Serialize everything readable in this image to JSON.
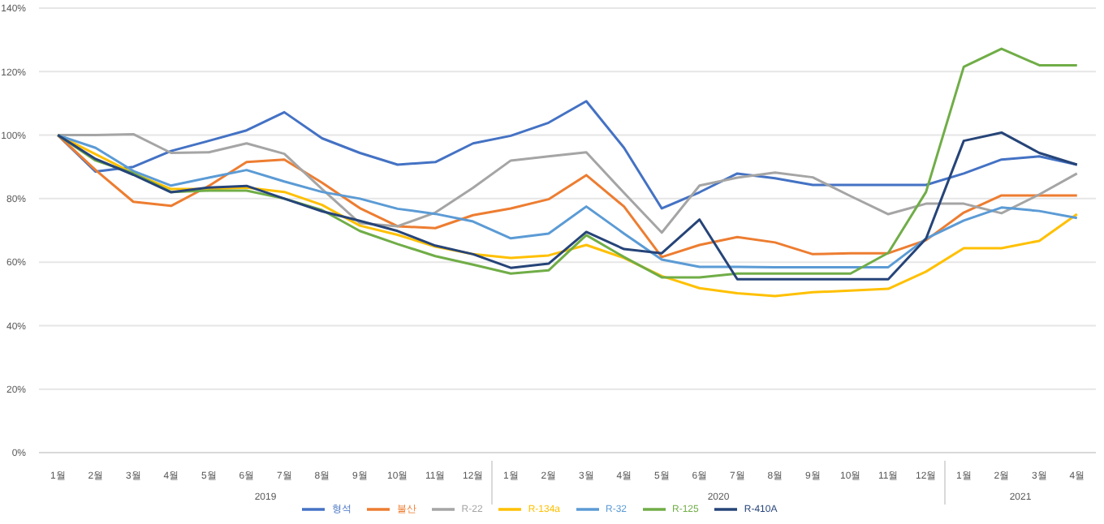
{
  "chart_data": {
    "type": "line",
    "categories": [
      "1월",
      "2월",
      "3월",
      "4월",
      "5월",
      "6월",
      "7월",
      "8월",
      "9월",
      "10월",
      "11월",
      "12월",
      "1월",
      "2월",
      "3월",
      "4월",
      "5월",
      "6월",
      "7월",
      "8월",
      "9월",
      "10월",
      "11월",
      "12월",
      "1월",
      "2월",
      "3월",
      "4월"
    ],
    "annotations": [
      "2019",
      "2020",
      "2021"
    ],
    "series": [
      {
        "name": "형석",
        "color": "#4472c4",
        "values": [
          100,
          88.5,
          90,
          95,
          98.2,
          101.5,
          107.2,
          99,
          94.4,
          90.7,
          91.5,
          97.4,
          99.8,
          103.9,
          110.7,
          96,
          76.9,
          82,
          87.9,
          86.4,
          84.3,
          84.3,
          84.3,
          84.3,
          87.9,
          92.3,
          93.3,
          90.7
        ]
      },
      {
        "name": "불산",
        "color": "#ed7d31",
        "values": [
          100,
          89,
          79,
          77.7,
          84,
          91.5,
          92.3,
          85,
          77,
          71.3,
          70.7,
          74.8,
          76.9,
          79.8,
          87.4,
          77.5,
          61.6,
          65.4,
          67.9,
          66.2,
          62.5,
          62.8,
          62.8,
          66.9,
          75.6,
          81,
          81,
          81
        ]
      },
      {
        "name": "R-22",
        "color": "#a5a5a5",
        "values": [
          100,
          100,
          100.3,
          94.4,
          94.6,
          97.4,
          94.1,
          83,
          72.3,
          71.3,
          75.6,
          83.4,
          92,
          93.3,
          94.6,
          81.8,
          69.3,
          84.1,
          86.6,
          88.2,
          86.7,
          80.8,
          75.1,
          78.4,
          78.4,
          75.4,
          81.3,
          87.9
        ]
      },
      {
        "name": "R-134a",
        "color": "#ffc000",
        "values": [
          100,
          94,
          88,
          83,
          83,
          83.5,
          82.1,
          78,
          71.5,
          68.6,
          64.9,
          62.5,
          61.3,
          62.1,
          65.4,
          61.3,
          55.6,
          51.8,
          50.2,
          49.3,
          50.5,
          51,
          51.6,
          57,
          64.4,
          64.4,
          66.7,
          75.1
        ]
      },
      {
        "name": "R-32",
        "color": "#5b9bd5",
        "values": [
          100,
          96,
          88.7,
          84.1,
          86.6,
          89,
          85.4,
          82.1,
          80,
          76.8,
          75.2,
          72.8,
          67.5,
          69,
          77.5,
          69,
          60.8,
          58.5,
          58.5,
          58.4,
          58.4,
          58.4,
          58.4,
          67.4,
          73.1,
          77.2,
          76.1,
          73.9
        ]
      },
      {
        "name": "R-125",
        "color": "#70ad47",
        "values": [
          100,
          92,
          88,
          82.1,
          82.5,
          82.5,
          80,
          76.4,
          69.8,
          65.7,
          61.9,
          59.2,
          56.4,
          57.4,
          68.5,
          61.6,
          55.2,
          55.2,
          56.4,
          56.4,
          56.4,
          56.4,
          62.9,
          82.1,
          121.5,
          127.2,
          122,
          122
        ]
      },
      {
        "name": "R-410A",
        "color": "#264478",
        "values": [
          100,
          92.5,
          87.5,
          82,
          83.5,
          84,
          80,
          76,
          73,
          69.8,
          65.2,
          62.5,
          58.2,
          59.5,
          69.5,
          64.1,
          62.8,
          73.4,
          54.6,
          54.6,
          54.6,
          54.6,
          54.6,
          67.4,
          98.2,
          100.8,
          94.4,
          90.7
        ]
      }
    ],
    "ylim": [
      0,
      140
    ],
    "yticks": [
      {
        "value": 0,
        "label": "0%"
      },
      {
        "value": 20,
        "label": "20%"
      },
      {
        "value": 40,
        "label": "40%"
      },
      {
        "value": 60,
        "label": "60%"
      },
      {
        "value": 80,
        "label": "80%"
      },
      {
        "value": 100,
        "label": "100%"
      },
      {
        "value": 120,
        "label": "120%"
      },
      {
        "value": 140,
        "label": "140%"
      }
    ],
    "grid": "y",
    "legend": "bottom",
    "marker": "none",
    "line_style": "solid"
  }
}
